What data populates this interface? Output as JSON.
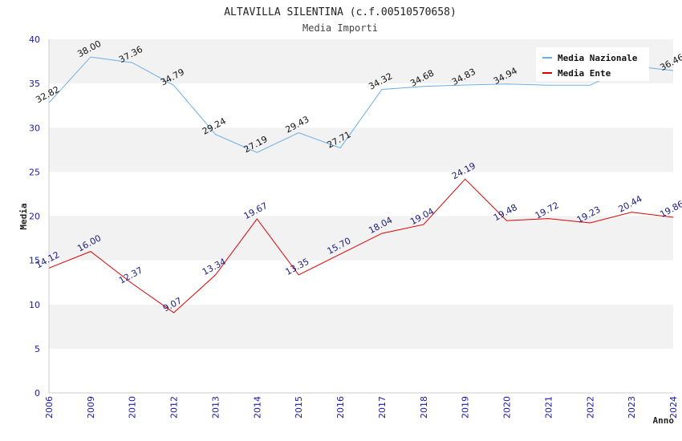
{
  "chart_data": {
    "type": "line",
    "title": "ALTAVILLA SILENTINA (c.f.00510570658)",
    "subtitle": "Media Importi",
    "xlabel": "Anno",
    "ylabel": "Media",
    "ylim": [
      0,
      40
    ],
    "yticks": [
      0,
      5,
      10,
      15,
      20,
      25,
      30,
      35,
      40
    ],
    "categories": [
      "2006",
      "2009",
      "2010",
      "2012",
      "2013",
      "2014",
      "2015",
      "2016",
      "2017",
      "2018",
      "2019",
      "2020",
      "2021",
      "2022",
      "2023",
      "2024"
    ],
    "series": [
      {
        "name": "Media Nazionale",
        "color": "#6aaee6",
        "values": [
          32.82,
          38.0,
          37.36,
          34.79,
          29.24,
          27.19,
          29.43,
          27.71,
          34.32,
          34.68,
          34.83,
          34.94,
          34.8,
          34.8,
          37.0,
          36.46
        ],
        "labels": [
          "32.82",
          "38.00",
          "37.36",
          "34.79",
          "29.24",
          "27.19",
          "29.43",
          "27.71",
          "34.32",
          "34.68",
          "34.83",
          "34.94",
          "",
          "",
          "",
          "36.46"
        ]
      },
      {
        "name": "Media Ente",
        "color": "#dd0000",
        "values": [
          14.12,
          16.0,
          12.37,
          9.07,
          13.34,
          19.67,
          13.35,
          15.7,
          18.04,
          19.04,
          24.19,
          19.48,
          19.72,
          19.23,
          20.44,
          19.86
        ],
        "labels": [
          "14.12",
          "16.00",
          "12.37",
          "9.07",
          "13.34",
          "19.67",
          "13.35",
          "15.70",
          "18.04",
          "19.04",
          "24.19",
          "19.48",
          "19.72",
          "19.23",
          "20.44",
          "19.86"
        ]
      }
    ],
    "legend": {
      "position": "top-right"
    },
    "grid": true
  }
}
